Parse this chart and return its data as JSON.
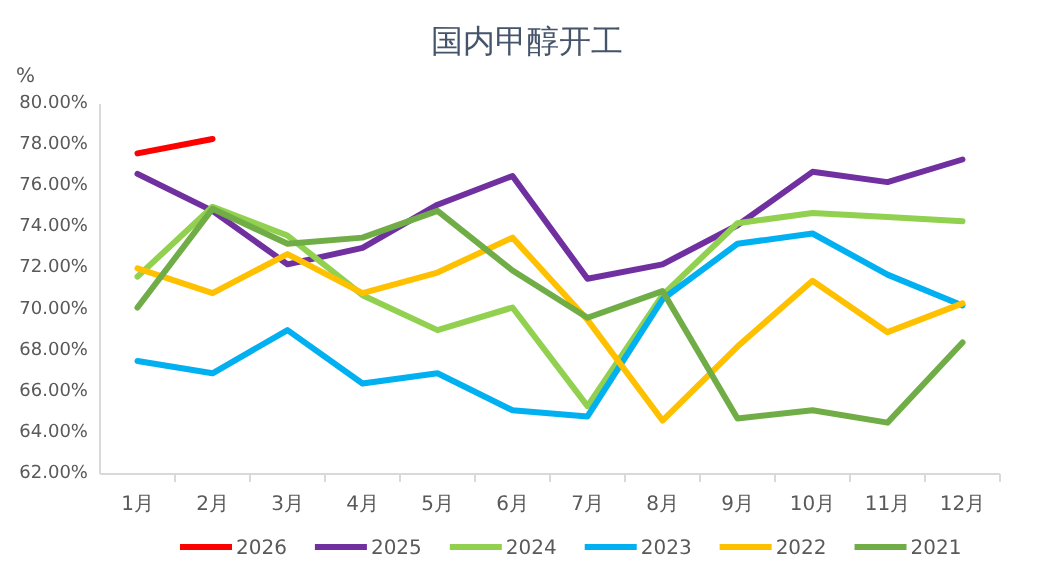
{
  "chart_data": {
    "type": "line",
    "title": "国内甲醇开工",
    "ylabel": "%",
    "categories": [
      "1月",
      "2月",
      "3月",
      "4月",
      "5月",
      "6月",
      "7月",
      "8月",
      "9月",
      "10月",
      "11月",
      "12月"
    ],
    "ylim": [
      62,
      80
    ],
    "yticks": [
      {
        "value": 62,
        "label": "62.00%"
      },
      {
        "value": 64,
        "label": "64.00%"
      },
      {
        "value": 66,
        "label": "66.00%"
      },
      {
        "value": 68,
        "label": "68.00%"
      },
      {
        "value": 70,
        "label": "70.00%"
      },
      {
        "value": 72,
        "label": "72.00%"
      },
      {
        "value": 74,
        "label": "74.00%"
      },
      {
        "value": 76,
        "label": "76.00%"
      },
      {
        "value": 78,
        "label": "78.00%"
      },
      {
        "value": 80,
        "label": "80.00%"
      }
    ],
    "grid": false,
    "legend": "bottom",
    "marker": "none",
    "line_style": "solid",
    "series": [
      {
        "name": "2026",
        "color": "#ff0000",
        "values": [
          77.6,
          78.3,
          null,
          null,
          null,
          null,
          null,
          null,
          null,
          null,
          null,
          null
        ]
      },
      {
        "name": "2025",
        "color": "#7030a0",
        "values": [
          76.6,
          74.8,
          72.2,
          73.0,
          75.1,
          76.5,
          71.5,
          72.2,
          74.1,
          76.7,
          76.2,
          77.3
        ]
      },
      {
        "name": "2024",
        "color": "#92d050",
        "values": [
          71.6,
          75.0,
          73.6,
          70.7,
          69.0,
          70.1,
          65.3,
          70.7,
          74.2,
          74.7,
          74.5,
          74.3
        ]
      },
      {
        "name": "2023",
        "color": "#00b0f0",
        "values": [
          67.5,
          66.9,
          69.0,
          66.4,
          66.9,
          65.1,
          64.8,
          70.5,
          73.2,
          73.7,
          71.7,
          70.2
        ]
      },
      {
        "name": "2022",
        "color": "#ffc000",
        "values": [
          72.0,
          70.8,
          72.7,
          70.8,
          71.8,
          73.5,
          69.5,
          64.6,
          68.2,
          71.4,
          68.9,
          70.3
        ]
      },
      {
        "name": "2021",
        "color": "#70ad47",
        "values": [
          70.1,
          74.9,
          73.2,
          73.5,
          74.8,
          71.9,
          69.6,
          70.9,
          64.7,
          65.1,
          64.5,
          68.4
        ]
      }
    ]
  }
}
